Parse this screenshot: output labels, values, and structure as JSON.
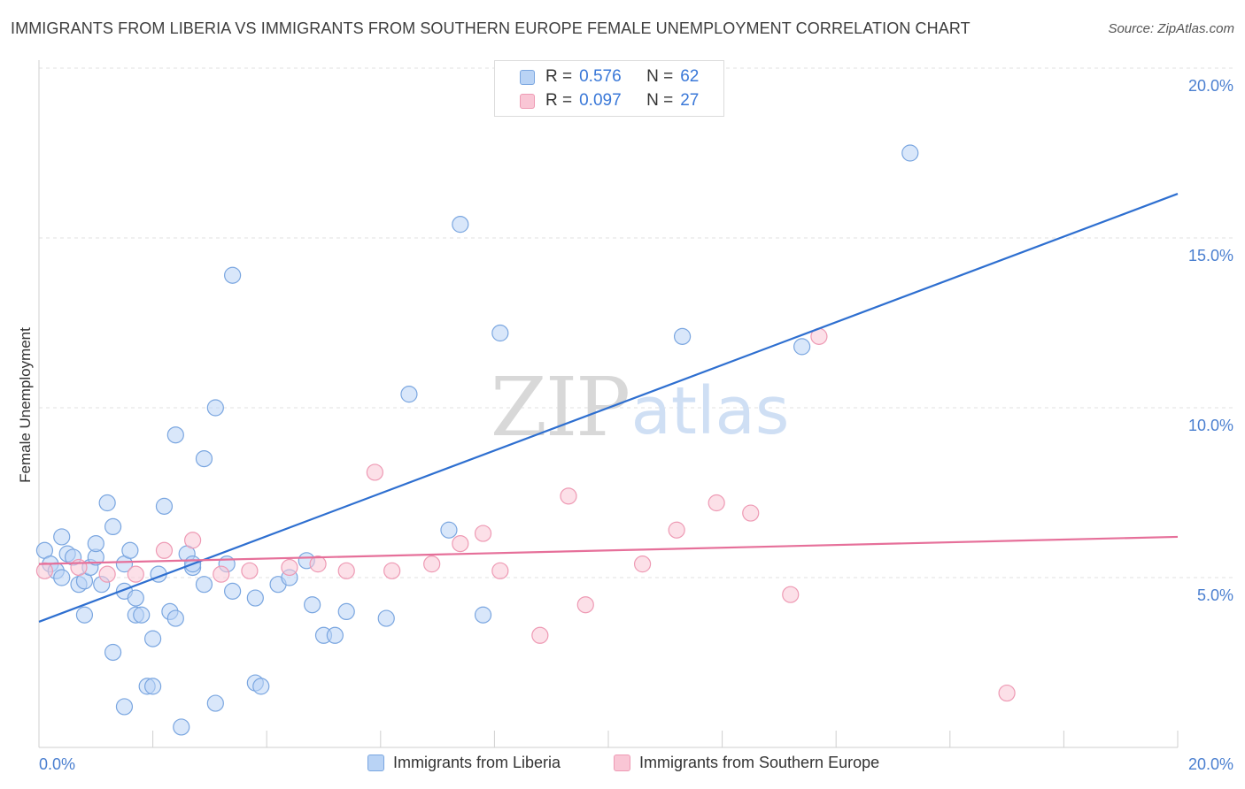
{
  "title": "IMMIGRANTS FROM LIBERIA VS IMMIGRANTS FROM SOUTHERN EUROPE FEMALE UNEMPLOYMENT CORRELATION CHART",
  "source": "Source: ZipAtlas.com",
  "watermark": {
    "zip": "ZIP",
    "atlas": "atlas"
  },
  "legend_top": [
    {
      "r_label": "R =",
      "r_value": "0.576",
      "n_label": "N =",
      "n_value": "62"
    },
    {
      "r_label": "R =",
      "r_value": "0.097",
      "n_label": "N =",
      "n_value": "27"
    }
  ],
  "colors": {
    "liberia_fill": "#b9d3f5",
    "liberia_stroke": "#7aa6e0",
    "liberia_line": "#2e6fd0",
    "seurope_fill": "#f9c6d5",
    "seurope_stroke": "#ee9ab4",
    "seurope_line": "#e6709a",
    "tick": "#4a7fd0",
    "grid": "#e2e2e2"
  },
  "chart_data": {
    "type": "scatter",
    "title": "IMMIGRANTS FROM LIBERIA VS IMMIGRANTS FROM SOUTHERN EUROPE FEMALE UNEMPLOYMENT CORRELATION CHART",
    "xlabel": "",
    "ylabel": "Female Unemployment",
    "xlim": [
      0,
      20
    ],
    "ylim": [
      0,
      20
    ],
    "x_tick_labels": [
      {
        "value": 0,
        "label": "0.0%"
      },
      {
        "value": 20,
        "label": "20.0%"
      }
    ],
    "x_minor_ticks": [
      2,
      4,
      6,
      8,
      10,
      12,
      14,
      16,
      18,
      20
    ],
    "y_ticks": [
      {
        "value": 5,
        "label": "5.0%"
      },
      {
        "value": 10,
        "label": "10.0%"
      },
      {
        "value": 15,
        "label": "15.0%"
      },
      {
        "value": 20,
        "label": "20.0%"
      }
    ],
    "grid": true,
    "legend_position": "top-center",
    "series": [
      {
        "name": "Immigrants from Liberia",
        "r": 0.576,
        "n": 62,
        "trend": [
          [
            0,
            3.7
          ],
          [
            20,
            16.3
          ]
        ],
        "points": [
          [
            0.1,
            5.8
          ],
          [
            0.2,
            5.4
          ],
          [
            0.3,
            5.2
          ],
          [
            0.4,
            5.0
          ],
          [
            0.4,
            6.2
          ],
          [
            0.5,
            5.7
          ],
          [
            0.6,
            5.6
          ],
          [
            0.7,
            4.8
          ],
          [
            0.8,
            3.9
          ],
          [
            0.8,
            4.9
          ],
          [
            0.9,
            5.3
          ],
          [
            1.0,
            5.6
          ],
          [
            1.0,
            6.0
          ],
          [
            1.1,
            4.8
          ],
          [
            1.2,
            7.2
          ],
          [
            1.3,
            6.5
          ],
          [
            1.3,
            2.8
          ],
          [
            1.5,
            5.4
          ],
          [
            1.5,
            4.6
          ],
          [
            1.5,
            1.2
          ],
          [
            1.6,
            5.8
          ],
          [
            1.7,
            4.4
          ],
          [
            1.7,
            3.9
          ],
          [
            1.8,
            3.9
          ],
          [
            1.9,
            1.8
          ],
          [
            2.0,
            3.2
          ],
          [
            2.0,
            1.8
          ],
          [
            2.1,
            5.1
          ],
          [
            2.2,
            7.1
          ],
          [
            2.3,
            4.0
          ],
          [
            2.4,
            3.8
          ],
          [
            2.4,
            9.2
          ],
          [
            2.5,
            0.6
          ],
          [
            2.6,
            5.7
          ],
          [
            2.7,
            5.3
          ],
          [
            2.7,
            5.4
          ],
          [
            2.9,
            4.8
          ],
          [
            2.9,
            8.5
          ],
          [
            3.1,
            10.0
          ],
          [
            3.1,
            1.3
          ],
          [
            3.3,
            5.4
          ],
          [
            3.4,
            4.6
          ],
          [
            3.4,
            13.9
          ],
          [
            3.8,
            1.9
          ],
          [
            3.8,
            4.4
          ],
          [
            3.9,
            1.8
          ],
          [
            4.2,
            4.8
          ],
          [
            4.4,
            5.0
          ],
          [
            4.7,
            5.5
          ],
          [
            4.8,
            4.2
          ],
          [
            5.0,
            3.3
          ],
          [
            5.2,
            3.3
          ],
          [
            5.4,
            4.0
          ],
          [
            6.1,
            3.8
          ],
          [
            6.5,
            10.4
          ],
          [
            7.2,
            6.4
          ],
          [
            7.4,
            15.4
          ],
          [
            7.8,
            3.9
          ],
          [
            8.1,
            12.2
          ],
          [
            11.3,
            12.1
          ],
          [
            13.4,
            11.8
          ],
          [
            15.3,
            17.5
          ]
        ]
      },
      {
        "name": "Immigrants from Southern Europe",
        "r": 0.097,
        "n": 27,
        "trend": [
          [
            0,
            5.4
          ],
          [
            20,
            6.2
          ]
        ],
        "points": [
          [
            0.1,
            5.2
          ],
          [
            0.7,
            5.3
          ],
          [
            1.2,
            5.1
          ],
          [
            1.7,
            5.1
          ],
          [
            2.2,
            5.8
          ],
          [
            2.7,
            6.1
          ],
          [
            3.2,
            5.1
          ],
          [
            3.7,
            5.2
          ],
          [
            4.4,
            5.3
          ],
          [
            4.9,
            5.4
          ],
          [
            5.4,
            5.2
          ],
          [
            5.9,
            8.1
          ],
          [
            6.2,
            5.2
          ],
          [
            6.9,
            5.4
          ],
          [
            7.4,
            6.0
          ],
          [
            7.8,
            6.3
          ],
          [
            8.1,
            5.2
          ],
          [
            8.8,
            3.3
          ],
          [
            9.3,
            7.4
          ],
          [
            9.6,
            4.2
          ],
          [
            10.6,
            5.4
          ],
          [
            11.2,
            6.4
          ],
          [
            11.9,
            7.2
          ],
          [
            12.5,
            6.9
          ],
          [
            13.2,
            4.5
          ],
          [
            13.7,
            12.1
          ],
          [
            17.0,
            1.6
          ]
        ]
      }
    ]
  }
}
